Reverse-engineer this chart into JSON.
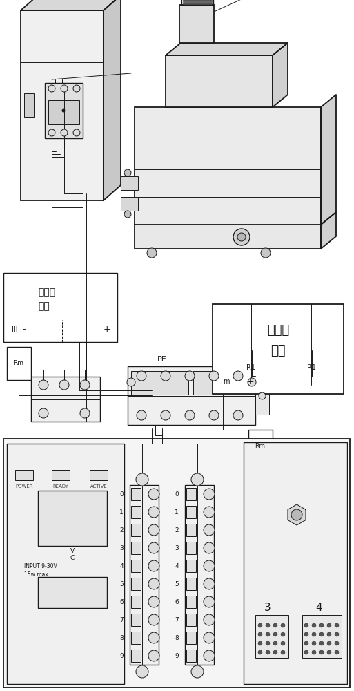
{
  "bg_color": "#ffffff",
  "line_color": "#1a1a1a",
  "figsize": [
    5.13,
    10.0
  ],
  "dpi": 100,
  "labels": {
    "current_sensor_line1": "电流传",
    "current_sensor_line2": "感器",
    "voltage_sensor_line1": "电压传",
    "voltage_sensor_line2": "感器",
    "pe": "PE",
    "r1": "R1",
    "rm": "Rm",
    "power": "POWER",
    "ready": "READY",
    "active": "ACTIVE",
    "input1": "INPUT 9-30V",
    "input2": "15w max",
    "v_label": "V",
    "c_label": "C",
    "label3": "3",
    "label4": "4",
    "m_label": "m",
    "plus": "+",
    "minus": "-"
  }
}
